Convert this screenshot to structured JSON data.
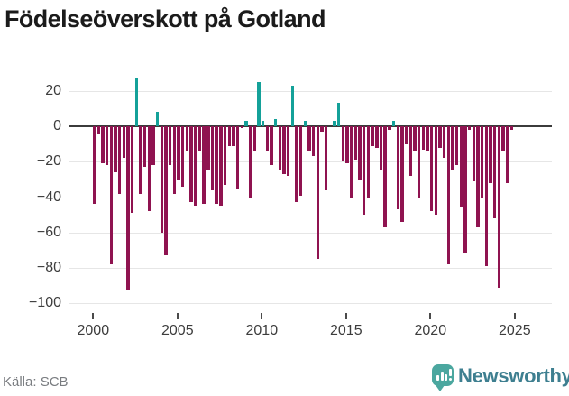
{
  "title": "Födelseöverskott på Gotland",
  "footer": {
    "source": "Källa: SCB",
    "brand": "Newsworthy"
  },
  "colors": {
    "negative_bar": "#8f1350",
    "positive_bar": "#14a199",
    "grid": "#e6e6e6",
    "zero_line": "#3b3b3b",
    "title_text": "#1b1b1b",
    "axis_text": "#3d3d3d",
    "source_text": "#797c80",
    "logo_icon": "#4ba79f",
    "wordmark_text": "#3e7f90"
  },
  "chart_data": {
    "type": "bar",
    "title": "Födelseöverskott på Gotland",
    "x_unit": "quarter",
    "x_start": "2000-Q1",
    "x_end": "2024-Q4",
    "x_tick_labels": [
      "2000",
      "2005",
      "2010",
      "2015",
      "2020",
      "2025"
    ],
    "x_tick_years": [
      2000,
      2005,
      2010,
      2015,
      2020,
      2025
    ],
    "y_tick_labels": [
      "20",
      "0",
      "−20",
      "−40",
      "−60",
      "−80",
      "−100"
    ],
    "y_tick_values": [
      20,
      0,
      -20,
      -40,
      -60,
      -80,
      -100
    ],
    "ylim": [
      -107,
      30
    ],
    "grid": true,
    "legend": false,
    "values": [
      -44,
      -4,
      -21,
      -22,
      -78,
      -26,
      -38,
      -18,
      -92,
      -49,
      27,
      -38,
      -23,
      -48,
      -22,
      8,
      -60,
      -73,
      -22,
      -38,
      -30,
      -34,
      -14,
      -43,
      -45,
      -14,
      -44,
      -25,
      -36,
      -44,
      -45,
      -33,
      -11,
      -11,
      -35,
      -1,
      3,
      -40,
      -14,
      25,
      3,
      -14,
      -22,
      4,
      -25,
      -27,
      -28,
      23,
      -43,
      -39,
      3,
      -14,
      -17,
      -75,
      -3,
      -36,
      0,
      3,
      13,
      -20,
      -21,
      -40,
      -19,
      -30,
      -50,
      -40,
      -11,
      -12,
      -25,
      -57,
      -2,
      3,
      -47,
      -54,
      -10,
      -28,
      -14,
      -41,
      -13,
      -14,
      -48,
      -50,
      -12,
      -18,
      -78,
      -25,
      -22,
      -46,
      -72,
      -2,
      -31,
      -57,
      -41,
      -79,
      -32,
      -52,
      -91,
      -14,
      -32,
      -2
    ]
  }
}
